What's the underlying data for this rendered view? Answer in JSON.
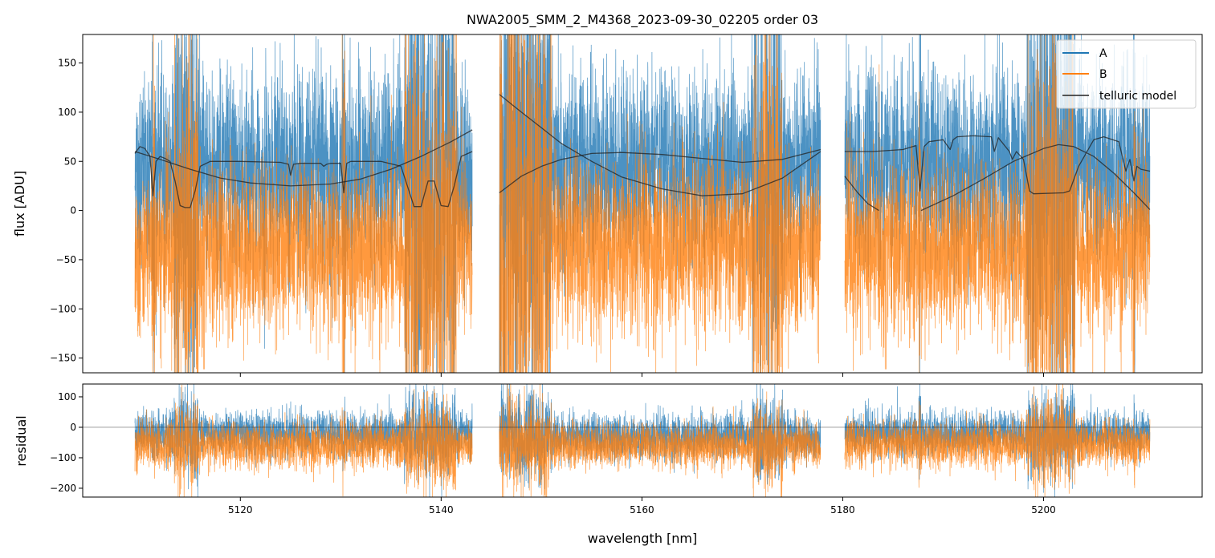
{
  "chart_data": {
    "type": "line",
    "title": "NWA2005_SMM_2_M4368_2023-09-30_02205  order 03",
    "xlabel": "wavelength [nm]",
    "panels": [
      {
        "id": "flux",
        "ylabel": "flux [ADU]",
        "ylim": [
          -165,
          179
        ],
        "yticks": [
          -150,
          -100,
          -50,
          0,
          50,
          100,
          150
        ]
      },
      {
        "id": "residual",
        "ylabel": "residual",
        "ylim": [
          -229,
          142
        ],
        "yticks": [
          -200,
          -100,
          0,
          100
        ],
        "zero_line": true
      }
    ],
    "xlim": [
      5104.3,
      5215.8
    ],
    "xticks": [
      5120,
      5140,
      5160,
      5180,
      5200
    ],
    "legend": {
      "placement": "top-right",
      "entries": [
        "A",
        "B",
        "telluric model"
      ]
    },
    "colors": {
      "A": "#1f77b4",
      "B": "#ff7f0e",
      "telluric model": "#222222"
    },
    "segments": [
      [
        5109.5,
        5143.1
      ],
      [
        5145.8,
        5177.8
      ],
      [
        5180.2,
        5210.6
      ]
    ],
    "series": [
      {
        "name": "A",
        "flux_level": [
          40,
          45,
          45
        ],
        "flux_spread": [
          60,
          60,
          60
        ],
        "residual_level": [
          -20,
          -30,
          -20
        ],
        "residual_spread": [
          45,
          45,
          45
        ]
      },
      {
        "name": "B",
        "flux_level": [
          -40,
          -35,
          -40
        ],
        "flux_spread": [
          55,
          55,
          55
        ],
        "residual_level": [
          -60,
          -60,
          -55
        ],
        "residual_spread": [
          45,
          45,
          45
        ]
      }
    ],
    "telluric_model": [
      {
        "x": [
          5109.5,
          5110,
          5110.5,
          5111,
          5111.3,
          5111.6,
          5112,
          5112.5,
          5113,
          5113.5,
          5114,
          5114.5,
          5115,
          5115.5,
          5116,
          5117,
          5118,
          5120,
          5124,
          5124.8,
          5125,
          5125.3,
          5126,
          5128,
          5128.3,
          5128.6,
          5129,
          5130,
          5130.3,
          5130.6,
          5131,
          5134,
          5136,
          5136.8,
          5137.3,
          5138,
          5138.7,
          5139.3,
          5140,
          5140.7,
          5141.3,
          5142,
          5143.1
        ],
        "y": [
          58,
          65,
          63,
          55,
          15,
          50,
          55,
          53,
          50,
          30,
          5,
          3,
          3,
          20,
          45,
          50,
          50,
          50,
          49,
          47,
          36,
          47,
          48,
          48,
          45,
          47,
          48,
          48,
          18,
          48,
          50,
          50,
          45,
          20,
          4,
          4,
          30,
          30,
          5,
          4,
          25,
          55,
          60
        ]
      },
      {
        "x": [
          5109.5,
          5112,
          5115,
          5118,
          5121,
          5125,
          5129,
          5132,
          5135,
          5138,
          5141,
          5143.1
        ],
        "y": [
          60,
          52,
          42,
          33,
          28,
          25,
          27,
          32,
          42,
          55,
          70,
          82
        ]
      },
      {
        "x": [
          5145.8,
          5148,
          5150,
          5152,
          5155,
          5158,
          5162,
          5166,
          5170,
          5174,
          5177.8
        ],
        "y": [
          118,
          100,
          84,
          68,
          50,
          34,
          22,
          15,
          17,
          33,
          60
        ]
      },
      {
        "x": [
          5145.8,
          5148,
          5150,
          5152,
          5155,
          5158,
          5162,
          5166,
          5170,
          5174,
          5177.8
        ],
        "y": [
          18,
          35,
          45,
          52,
          58,
          59,
          57,
          53,
          49,
          52,
          62
        ]
      },
      {
        "x": [
          5180.2,
          5183,
          5186,
          5187.3,
          5187.7,
          5188.1,
          5188.6,
          5190,
          5190.7,
          5191,
          5191.4,
          5193,
          5194.8,
          5195.1,
          5195.5,
          5196.6,
          5196.9,
          5197.3,
          5198,
          5198.6,
          5199,
          5202,
          5202.6,
          5203.5,
          5205,
          5206,
          5207.5,
          5208.2,
          5208.6,
          5209,
          5209.3,
          5209.7,
          5210.6
        ],
        "y": [
          60,
          60,
          62,
          66,
          20,
          65,
          70,
          72,
          62,
          72,
          75,
          76,
          75,
          60,
          74,
          60,
          52,
          60,
          52,
          20,
          17,
          18,
          20,
          45,
          72,
          75,
          70,
          40,
          52,
          30,
          45,
          42,
          40
        ]
      },
      {
        "x": [
          5180.2,
          5181.5,
          5182.5,
          5183.6
        ],
        "y": [
          35,
          18,
          7,
          0
        ]
      },
      {
        "x": [
          5187.8,
          5191,
          5194,
          5197,
          5200,
          5201.5,
          5203,
          5205,
          5207,
          5209,
          5210.6
        ],
        "y": [
          0,
          15,
          32,
          50,
          63,
          67,
          65,
          55,
          38,
          18,
          1
        ]
      }
    ]
  }
}
